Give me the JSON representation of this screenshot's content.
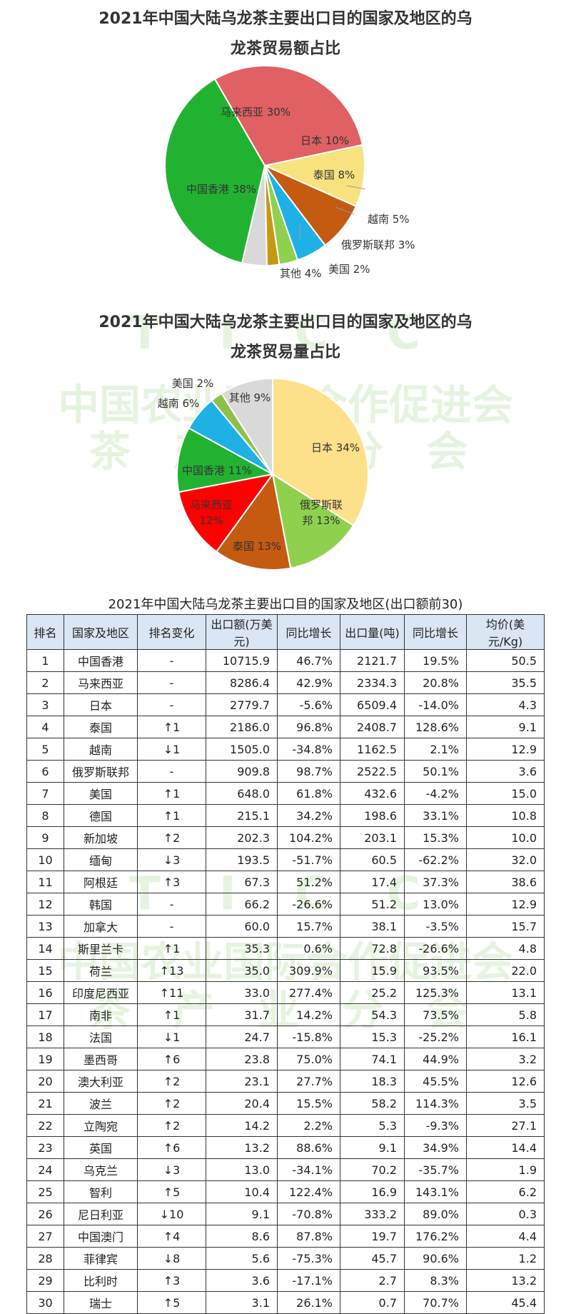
{
  "chart_data": [
    {
      "type": "pie",
      "title": "2021年中国大陆乌龙茶主要出口目的国家及地区的乌龙茶贸易额占比",
      "title_lines": [
        "2021年中国大陆乌龙茶主要出口目的国家及地区的乌",
        "龙茶贸易额占比"
      ],
      "slices": [
        {
          "label": "马来西亚",
          "value": 30,
          "text": "马来西亚 30%",
          "color": "#e06063"
        },
        {
          "label": "日本",
          "value": 10,
          "text": "日本 10%",
          "color": "#f7e27e"
        },
        {
          "label": "泰国",
          "value": 8,
          "text": "泰国 8%",
          "color": "#c55a11"
        },
        {
          "label": "越南",
          "value": 5,
          "text": "越南 5%",
          "color": "#1fb0e6"
        },
        {
          "label": "俄罗斯联邦",
          "value": 3,
          "text": "俄罗斯联邦 3%",
          "color": "#8fd14f"
        },
        {
          "label": "美国",
          "value": 2,
          "text": "美国 2%",
          "color": "#c49a14"
        },
        {
          "label": "其他",
          "value": 4,
          "text": "其他 4%",
          "color": "#d9d9d9"
        },
        {
          "label": "中国香港",
          "value": 38,
          "text": "中国香港 38%",
          "color": "#22b232"
        }
      ]
    },
    {
      "type": "pie",
      "title": "2021年中国大陆乌龙茶主要出口目的国家及地区的乌龙茶贸易量占比",
      "title_lines": [
        "2021年中国大陆乌龙茶主要出口目的国家及地区的乌",
        "龙茶贸易量占比"
      ],
      "slices": [
        {
          "label": "日本",
          "value": 34,
          "text": "日本 34%",
          "color": "#fde08a"
        },
        {
          "label": "俄罗斯联邦",
          "value": 13,
          "text": "俄罗斯联\n邦 13%",
          "color": "#8fd14f"
        },
        {
          "label": "泰国",
          "value": 13,
          "text": "泰国 13%",
          "color": "#c55a11"
        },
        {
          "label": "马来西亚",
          "value": 12,
          "text": "马来西亚\n12%",
          "color": "#ff0000"
        },
        {
          "label": "中国香港",
          "value": 11,
          "text": "中国香港 11%",
          "color": "#22b232"
        },
        {
          "label": "越南",
          "value": 6,
          "text": "越南 6%",
          "color": "#1fb0e6"
        },
        {
          "label": "美国",
          "value": 2,
          "text": "美国 2%",
          "color": "#8cc04a"
        },
        {
          "label": "其他",
          "value": 9,
          "text": "其他 9%",
          "color": "#d9d9d9"
        }
      ]
    },
    {
      "type": "table",
      "title": "2021年中国大陆乌龙茶主要出口目的国家及地区(出口额前30)",
      "columns": [
        "排名",
        "国家及地区",
        "排名变化",
        "出口额(万美元)",
        "同比增长",
        "出口量(吨)",
        "同比增长",
        "均价(美元/Kg)"
      ],
      "rows": [
        [
          "1",
          "中国香港",
          "-",
          "10715.9",
          "46.7%",
          "2121.7",
          "19.5%",
          "50.5"
        ],
        [
          "2",
          "马来西亚",
          "-",
          "8286.4",
          "42.9%",
          "2334.3",
          "20.8%",
          "35.5"
        ],
        [
          "3",
          "日本",
          "-",
          "2779.7",
          "-5.6%",
          "6509.4",
          "-14.0%",
          "4.3"
        ],
        [
          "4",
          "泰国",
          "↑1",
          "2186.0",
          "96.8%",
          "2408.7",
          "128.6%",
          "9.1"
        ],
        [
          "5",
          "越南",
          "↓1",
          "1505.0",
          "-34.8%",
          "1162.5",
          "2.1%",
          "12.9"
        ],
        [
          "6",
          "俄罗斯联邦",
          "-",
          "909.8",
          "98.7%",
          "2522.5",
          "50.1%",
          "3.6"
        ],
        [
          "7",
          "美国",
          "↑1",
          "648.0",
          "61.8%",
          "432.6",
          "-4.2%",
          "15.0"
        ],
        [
          "8",
          "德国",
          "↑1",
          "215.1",
          "34.2%",
          "198.6",
          "33.1%",
          "10.8"
        ],
        [
          "9",
          "新加坡",
          "↑2",
          "202.3",
          "104.2%",
          "203.1",
          "15.3%",
          "10.0"
        ],
        [
          "10",
          "缅甸",
          "↓3",
          "193.5",
          "-51.7%",
          "60.5",
          "-62.2%",
          "32.0"
        ],
        [
          "11",
          "阿根廷",
          "↑3",
          "67.3",
          "51.2%",
          "17.4",
          "37.3%",
          "38.6"
        ],
        [
          "12",
          "韩国",
          "-",
          "66.2",
          "-26.6%",
          "51.2",
          "13.0%",
          "12.9"
        ],
        [
          "13",
          "加拿大",
          "-",
          "60.0",
          "15.7%",
          "38.1",
          "-3.5%",
          "15.7"
        ],
        [
          "14",
          "斯里兰卡",
          "↑1",
          "35.3",
          "0.6%",
          "72.8",
          "-26.6%",
          "4.8"
        ],
        [
          "15",
          "荷兰",
          "↑13",
          "35.0",
          "309.9%",
          "15.9",
          "93.5%",
          "22.0"
        ],
        [
          "16",
          "印度尼西亚",
          "↑11",
          "33.0",
          "277.4%",
          "25.2",
          "125.3%",
          "13.1"
        ],
        [
          "17",
          "南非",
          "↑1",
          "31.7",
          "14.2%",
          "54.3",
          "73.5%",
          "5.8"
        ],
        [
          "18",
          "法国",
          "↓1",
          "24.7",
          "-15.8%",
          "15.3",
          "-25.2%",
          "16.1"
        ],
        [
          "19",
          "墨西哥",
          "↑6",
          "23.8",
          "75.0%",
          "74.1",
          "44.9%",
          "3.2"
        ],
        [
          "20",
          "澳大利亚",
          "↑2",
          "23.1",
          "27.7%",
          "18.3",
          "45.5%",
          "12.6"
        ],
        [
          "21",
          "波兰",
          "↑2",
          "20.4",
          "15.5%",
          "58.2",
          "114.3%",
          "3.5"
        ],
        [
          "22",
          "立陶宛",
          "↑2",
          "14.2",
          "2.2%",
          "5.3",
          "-9.3%",
          "27.1"
        ],
        [
          "23",
          "英国",
          "↑6",
          "13.2",
          "88.6%",
          "9.1",
          "34.9%",
          "14.4"
        ],
        [
          "24",
          "乌克兰",
          "↓3",
          "13.0",
          "-34.1%",
          "70.2",
          "-35.7%",
          "1.9"
        ],
        [
          "25",
          "智利",
          "↑5",
          "10.4",
          "122.4%",
          "16.9",
          "143.1%",
          "6.2"
        ],
        [
          "26",
          "尼日利亚",
          "↓10",
          "9.1",
          "-70.8%",
          "333.2",
          "89.0%",
          "0.3"
        ],
        [
          "27",
          "中国澳门",
          "↑4",
          "8.6",
          "87.8%",
          "19.7",
          "176.2%",
          "4.4"
        ],
        [
          "28",
          "菲律宾",
          "↓8",
          "5.6",
          "-75.3%",
          "45.7",
          "90.6%",
          "1.2"
        ],
        [
          "29",
          "比利时",
          "↑3",
          "3.6",
          "-17.1%",
          "2.7",
          "8.3%",
          "13.2"
        ],
        [
          "30",
          "瑞士",
          "↑5",
          "3.1",
          "26.1%",
          "0.7",
          "70.7%",
          "45.4"
        ]
      ]
    }
  ],
  "watermark": {
    "letters": "T I C C",
    "line1": "中国农业国际合作促进会",
    "line2": "茶 产 业 分 会"
  }
}
